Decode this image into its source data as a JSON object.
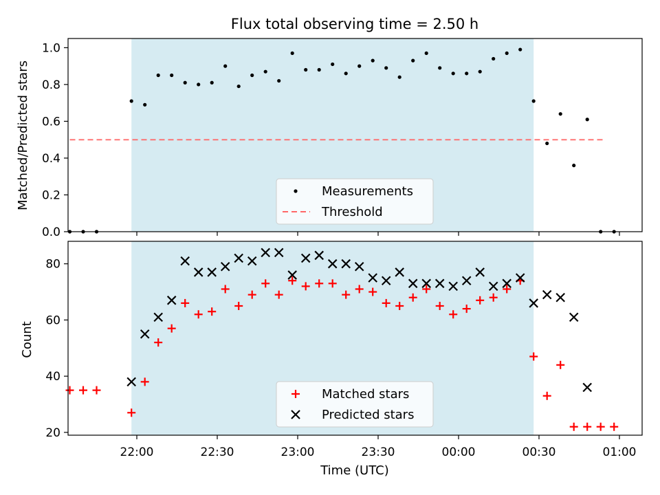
{
  "figure_title": "Flux total observing time = 2.50 h",
  "x_axis": {
    "label": "Time (UTC)",
    "ticks": [
      "22:00",
      "22:30",
      "23:00",
      "23:30",
      "00:00",
      "00:30",
      "01:00"
    ]
  },
  "colors": {
    "span_fill": "#add8e6",
    "measurement": "#000000",
    "threshold": "#ff6666",
    "matched": "#ff0000",
    "predicted": "#000000"
  },
  "chart_data": [
    {
      "type": "scatter",
      "title": "Flux total observing time = 2.50 h",
      "ylabel": "Matched/Predicted stars",
      "xlabel": "",
      "x_unit": "minutes after 21:00 UTC",
      "ylim": [
        0,
        1.05
      ],
      "yticks": [
        "0.0",
        "0.2",
        "0.4",
        "0.6",
        "0.8",
        "1.0"
      ],
      "observing_window": [
        "21:58",
        "00:28"
      ],
      "threshold": 0.5,
      "threshold_range": [
        "21:35",
        "00:55"
      ],
      "legend": {
        "position": "bottom-center",
        "entries": [
          "Measurements",
          "Threshold"
        ]
      },
      "series": [
        {
          "name": "Measurements",
          "x": [
            "21:35",
            "21:40",
            "21:45",
            "21:58",
            "22:03",
            "22:08",
            "22:13",
            "22:18",
            "22:23",
            "22:28",
            "22:33",
            "22:38",
            "22:43",
            "22:48",
            "22:53",
            "22:58",
            "23:03",
            "23:08",
            "23:13",
            "23:18",
            "23:23",
            "23:28",
            "23:33",
            "23:38",
            "23:43",
            "23:48",
            "23:53",
            "23:58",
            "00:03",
            "00:08",
            "00:13",
            "00:18",
            "00:23",
            "00:28",
            "00:33",
            "00:38",
            "00:43",
            "00:48",
            "00:53",
            "00:58"
          ],
          "y": [
            0.0,
            0.0,
            0.0,
            0.71,
            0.69,
            0.85,
            0.85,
            0.81,
            0.8,
            0.81,
            0.9,
            0.79,
            0.85,
            0.87,
            0.82,
            0.97,
            0.88,
            0.88,
            0.91,
            0.86,
            0.9,
            0.93,
            0.89,
            0.84,
            0.93,
            0.97,
            0.89,
            0.86,
            0.86,
            0.87,
            0.94,
            0.97,
            0.99,
            0.71,
            0.48,
            0.64,
            0.36,
            0.61,
            0.0,
            0.0
          ]
        }
      ]
    },
    {
      "type": "scatter",
      "ylabel": "Count",
      "xlabel": "Time (UTC)",
      "ylim": [
        19,
        88
      ],
      "yticks": [
        "20",
        "40",
        "60",
        "80"
      ],
      "observing_window": [
        "21:58",
        "00:28"
      ],
      "legend": {
        "position": "bottom-center",
        "entries": [
          "Matched stars",
          "Predicted stars"
        ]
      },
      "series": [
        {
          "name": "Matched stars",
          "x": [
            "21:35",
            "21:40",
            "21:45",
            "21:58",
            "22:03",
            "22:08",
            "22:13",
            "22:18",
            "22:23",
            "22:28",
            "22:33",
            "22:38",
            "22:43",
            "22:48",
            "22:53",
            "22:58",
            "23:03",
            "23:08",
            "23:13",
            "23:18",
            "23:23",
            "23:28",
            "23:33",
            "23:38",
            "23:43",
            "23:48",
            "23:53",
            "23:58",
            "00:03",
            "00:08",
            "00:13",
            "00:18",
            "00:23",
            "00:28",
            "00:33",
            "00:38",
            "00:43",
            "00:48",
            "00:53",
            "00:58"
          ],
          "y": [
            35,
            35,
            35,
            27,
            38,
            52,
            57,
            66,
            62,
            63,
            71,
            65,
            69,
            73,
            69,
            74,
            72,
            73,
            73,
            69,
            71,
            70,
            66,
            65,
            68,
            71,
            65,
            62,
            64,
            67,
            68,
            71,
            74,
            47,
            33,
            44,
            22,
            22,
            22,
            22
          ]
        },
        {
          "name": "Predicted stars",
          "x": [
            "21:58",
            "22:03",
            "22:08",
            "22:13",
            "22:18",
            "22:23",
            "22:28",
            "22:33",
            "22:38",
            "22:43",
            "22:48",
            "22:53",
            "22:58",
            "23:03",
            "23:08",
            "23:13",
            "23:18",
            "23:23",
            "23:28",
            "23:33",
            "23:38",
            "23:43",
            "23:48",
            "23:53",
            "23:58",
            "00:03",
            "00:08",
            "00:13",
            "00:18",
            "00:23",
            "00:28",
            "00:33",
            "00:38",
            "00:43",
            "00:48"
          ],
          "y": [
            38,
            55,
            61,
            67,
            81,
            77,
            77,
            79,
            82,
            81,
            84,
            84,
            76,
            82,
            83,
            80,
            80,
            79,
            75,
            74,
            77,
            73,
            73,
            73,
            72,
            74,
            77,
            72,
            73,
            75,
            66,
            69,
            68,
            61,
            36
          ]
        }
      ]
    }
  ]
}
